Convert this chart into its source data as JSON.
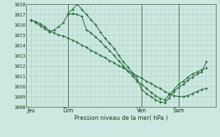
{
  "background_color": "#cce8e0",
  "grid_color": "#aaccc4",
  "line_color": "#2d6e3e",
  "ylabel": "Pression niveau de la mer( hPa )",
  "ylim": [
    1008,
    1018
  ],
  "yticks": [
    1008,
    1009,
    1010,
    1011,
    1012,
    1013,
    1014,
    1015,
    1016,
    1017,
    1018
  ],
  "xtick_labels": [
    "Jeu",
    "Dim",
    "Ven",
    "Sam"
  ],
  "xtick_positions": [
    0,
    8,
    24,
    32
  ],
  "vline_positions": [
    8,
    24,
    32
  ],
  "xlim": [
    -1,
    40
  ],
  "series1": {
    "x": [
      0,
      1,
      2,
      3,
      4,
      5,
      6,
      7,
      8,
      9,
      10,
      11,
      12,
      13,
      14,
      15,
      16,
      17,
      18,
      19,
      20,
      21,
      22,
      23,
      24,
      25,
      26,
      27,
      28,
      29,
      30,
      31,
      32,
      33,
      34,
      35,
      36,
      37,
      38
    ],
    "y": [
      1016.4,
      1016.3,
      1016.1,
      1015.8,
      1015.4,
      1015.2,
      1015.0,
      1014.9,
      1014.7,
      1014.5,
      1014.3,
      1014.0,
      1013.8,
      1013.5,
      1013.3,
      1013.0,
      1012.8,
      1012.5,
      1012.3,
      1012.0,
      1011.8,
      1011.5,
      1011.3,
      1011.0,
      1010.8,
      1010.5,
      1010.3,
      1010.0,
      1009.8,
      1009.5,
      1009.3,
      1009.1,
      1009.0,
      1009.0,
      1009.1,
      1009.3,
      1009.5,
      1009.7,
      1009.8
    ]
  },
  "series2": {
    "x": [
      0,
      1,
      2,
      3,
      4,
      5,
      6,
      7,
      8,
      9,
      10,
      11,
      12,
      13,
      14,
      15,
      16,
      17,
      18,
      19,
      20,
      21,
      22,
      23,
      24,
      25,
      26,
      27,
      28,
      29,
      30,
      31,
      32,
      33,
      34,
      35,
      36,
      37,
      38
    ],
    "y": [
      1016.5,
      1016.2,
      1015.9,
      1015.6,
      1015.3,
      1015.5,
      1015.8,
      1016.2,
      1017.0,
      1017.1,
      1017.0,
      1016.8,
      1015.5,
      1015.2,
      1014.8,
      1014.4,
      1013.9,
      1013.5,
      1013.0,
      1012.5,
      1012.0,
      1011.5,
      1011.0,
      1010.5,
      1010.2,
      1009.8,
      1009.4,
      1009.1,
      1008.8,
      1008.7,
      1009.2,
      1009.7,
      1010.2,
      1010.5,
      1010.9,
      1011.2,
      1011.4,
      1011.6,
      1011.8
    ]
  },
  "series3": {
    "x": [
      8,
      9,
      10,
      11,
      12,
      13,
      14,
      15,
      16,
      17,
      18,
      19,
      20,
      21,
      22,
      23,
      24,
      25,
      26,
      27,
      28,
      29,
      30,
      31,
      32,
      33,
      34,
      35,
      36,
      37,
      38
    ],
    "y": [
      1017.1,
      1017.5,
      1018.0,
      1017.5,
      1017.0,
      1016.5,
      1016.0,
      1015.3,
      1014.7,
      1014.2,
      1013.7,
      1013.0,
      1012.4,
      1011.9,
      1011.3,
      1010.7,
      1009.7,
      1009.3,
      1009.0,
      1008.7,
      1008.5,
      1008.4,
      1008.9,
      1009.5,
      1009.9,
      1010.2,
      1010.6,
      1010.9,
      1011.2,
      1011.4,
      1012.4
    ]
  }
}
